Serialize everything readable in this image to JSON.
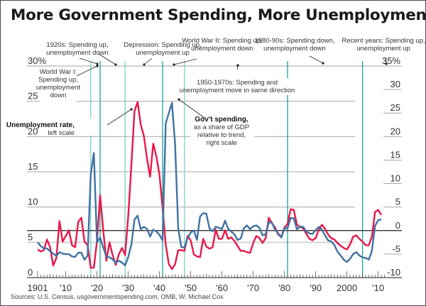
{
  "title": "More Government Spending, More Unemployment",
  "source": "Sources: U.S. Census, usgovernmentspending.com, OMB, W. Michael Cox",
  "chart_data": {
    "type": "line",
    "title": "More Government Spending, More Unemployment",
    "xlabel": "",
    "ylabel_left": "Unemployment rate (%)",
    "ylabel_right": "Gov't spending, share of GDP relative to trend (%)",
    "xlim": [
      1898,
      2015
    ],
    "ylim_left": [
      0,
      30
    ],
    "ylim_right": [
      -10,
      35
    ],
    "x_ticks": [
      {
        "year": 1901,
        "label": "1901"
      },
      {
        "year": 1910,
        "label": "'10"
      },
      {
        "year": 1920,
        "label": "'20"
      },
      {
        "year": 1930,
        "label": "'30"
      },
      {
        "year": 1940,
        "label": "'40"
      },
      {
        "year": 1950,
        "label": "'50"
      },
      {
        "year": 1960,
        "label": "'60"
      },
      {
        "year": 1970,
        "label": "'70"
      },
      {
        "year": 1980,
        "label": "'80"
      },
      {
        "year": 1990,
        "label": "'90"
      },
      {
        "year": 2000,
        "label": "2000"
      },
      {
        "year": 2010,
        "label": "'10"
      }
    ],
    "left_ticks": [
      {
        "value": 30,
        "label": "30%"
      },
      {
        "value": 25,
        "label": "25"
      },
      {
        "value": 20,
        "label": "20"
      },
      {
        "value": 15,
        "label": "15"
      },
      {
        "value": 10,
        "label": "10"
      },
      {
        "value": 5,
        "label": "5"
      },
      {
        "value": 0,
        "label": "0"
      }
    ],
    "right_ticks": [
      {
        "value": 35,
        "label": "35%"
      },
      {
        "value": 30,
        "label": "30"
      },
      {
        "value": 25,
        "label": "25"
      },
      {
        "value": 20,
        "label": "20"
      },
      {
        "value": 15,
        "label": "15"
      },
      {
        "value": 10,
        "label": "10"
      },
      {
        "value": 5,
        "label": "5"
      },
      {
        "value": 0,
        "label": "0"
      },
      {
        "value": -5,
        "label": "-5"
      },
      {
        "value": -10,
        "label": "-10"
      }
    ],
    "period_markers": [
      1918,
      1921,
      1929,
      1941,
      1948,
      1981,
      2005
    ],
    "series": [
      {
        "name": "Unemployment rate, left scale",
        "axis": "left",
        "color": "#e8184a",
        "x": [
          1901,
          1902,
          1903,
          1904,
          1905,
          1906,
          1907,
          1908,
          1909,
          1910,
          1911,
          1912,
          1913,
          1914,
          1915,
          1916,
          1917,
          1918,
          1919,
          1920,
          1921,
          1922,
          1923,
          1924,
          1925,
          1926,
          1927,
          1928,
          1929,
          1930,
          1931,
          1932,
          1933,
          1934,
          1935,
          1936,
          1937,
          1938,
          1939,
          1940,
          1941,
          1942,
          1943,
          1944,
          1945,
          1946,
          1947,
          1948,
          1949,
          1950,
          1951,
          1952,
          1953,
          1954,
          1955,
          1956,
          1957,
          1958,
          1959,
          1960,
          1961,
          1962,
          1963,
          1964,
          1965,
          1966,
          1967,
          1968,
          1969,
          1970,
          1971,
          1972,
          1973,
          1974,
          1975,
          1976,
          1977,
          1978,
          1979,
          1980,
          1981,
          1982,
          1983,
          1984,
          1985,
          1986,
          1987,
          1988,
          1989,
          1990,
          1991,
          1992,
          1993,
          1994,
          1995,
          1996,
          1997,
          1998,
          1999,
          2000,
          2001,
          2002,
          2003,
          2004,
          2005,
          2006,
          2007,
          2008,
          2009,
          2010,
          2011
        ],
        "values": [
          4.0,
          3.7,
          3.9,
          5.4,
          4.3,
          1.7,
          2.8,
          8.0,
          5.1,
          5.9,
          6.7,
          4.6,
          4.3,
          7.9,
          8.5,
          5.1,
          4.6,
          1.4,
          1.4,
          5.2,
          11.7,
          6.7,
          2.4,
          5.0,
          3.2,
          1.8,
          3.3,
          4.2,
          3.2,
          8.7,
          15.9,
          23.6,
          24.9,
          21.7,
          20.1,
          16.9,
          14.3,
          19.0,
          17.2,
          14.6,
          9.9,
          4.7,
          1.9,
          1.2,
          1.9,
          3.9,
          3.9,
          3.8,
          5.9,
          5.3,
          3.3,
          3.0,
          2.9,
          5.5,
          4.4,
          4.1,
          4.3,
          6.8,
          5.5,
          5.5,
          6.7,
          5.5,
          5.7,
          5.2,
          4.5,
          3.8,
          3.8,
          3.6,
          3.5,
          4.9,
          5.9,
          5.6,
          4.9,
          5.6,
          8.5,
          7.7,
          7.1,
          6.1,
          5.8,
          7.1,
          7.6,
          9.7,
          9.6,
          7.5,
          7.2,
          7.0,
          6.2,
          5.5,
          5.3,
          5.6,
          6.8,
          7.5,
          6.9,
          6.1,
          5.6,
          5.4,
          4.9,
          4.5,
          4.2,
          4.0,
          4.7,
          5.8,
          6.0,
          5.5,
          5.1,
          4.6,
          4.6,
          5.8,
          9.3,
          9.6,
          8.9
        ]
      },
      {
        "name": "Gov't spending, as a share of GDP relative to trend, right scale",
        "axis": "right",
        "color": "#3f72a3",
        "x": [
          1901,
          1902,
          1903,
          1904,
          1905,
          1906,
          1907,
          1908,
          1909,
          1910,
          1911,
          1912,
          1913,
          1914,
          1915,
          1916,
          1917,
          1918,
          1919,
          1920,
          1921,
          1922,
          1923,
          1924,
          1925,
          1926,
          1927,
          1928,
          1929,
          1930,
          1931,
          1932,
          1933,
          1934,
          1935,
          1936,
          1937,
          1938,
          1939,
          1940,
          1941,
          1942,
          1943,
          1944,
          1945,
          1946,
          1947,
          1948,
          1949,
          1950,
          1951,
          1952,
          1953,
          1954,
          1955,
          1956,
          1957,
          1958,
          1959,
          1960,
          1961,
          1962,
          1963,
          1964,
          1965,
          1966,
          1967,
          1968,
          1969,
          1970,
          1971,
          1972,
          1973,
          1974,
          1975,
          1976,
          1977,
          1978,
          1979,
          1980,
          1981,
          1982,
          1983,
          1984,
          1985,
          1986,
          1987,
          1988,
          1989,
          1990,
          1991,
          1992,
          1993,
          1994,
          1995,
          1996,
          1997,
          1998,
          1999,
          2000,
          2001,
          2002,
          2003,
          2004,
          2005,
          2006,
          2007,
          2008,
          2009,
          2010,
          2011
        ],
        "values": [
          -2.5,
          -3.3,
          -3.8,
          -3.8,
          -4.4,
          -4.9,
          -5.4,
          -4.6,
          -4.9,
          -5.0,
          -5.0,
          -5.5,
          -5.6,
          -4.7,
          -4.7,
          -6.2,
          -5.3,
          12.0,
          16.5,
          -2.5,
          -1.5,
          -3.6,
          -5.5,
          -5.7,
          -6.1,
          -6.9,
          -6.4,
          -6.8,
          -7.4,
          -5.6,
          -3.0,
          2.3,
          3.2,
          0.3,
          0.8,
          0.4,
          -1.3,
          0.2,
          -0.2,
          -0.9,
          -2.1,
          22.8,
          25.0,
          27.2,
          18.4,
          0.5,
          -3.5,
          -3.6,
          -1.6,
          -0.4,
          0.0,
          -2.0,
          3.0,
          3.7,
          3.6,
          0.5,
          -0.2,
          0.8,
          0.6,
          0.3,
          2.1,
          0.4,
          -0.2,
          -0.8,
          -2.0,
          -1.7,
          0.5,
          1.1,
          0.3,
          0.9,
          1.1,
          0.6,
          -1.0,
          -0.8,
          1.8,
          1.7,
          0.2,
          -0.6,
          -1.5,
          0.5,
          0.5,
          2.7,
          2.6,
          0.3,
          0.8,
          0.8,
          -0.2,
          -0.6,
          -0.7,
          0.1,
          0.8,
          0.2,
          -1.0,
          -2.1,
          -2.3,
          -3.1,
          -4.5,
          -5.3,
          -6.2,
          -6.7,
          -6.0,
          -5.0,
          -4.6,
          -5.3,
          -5.7,
          -5.8,
          -6.2,
          -4.3,
          1.0,
          2.2,
          2.4
        ]
      }
    ],
    "annotations": [
      {
        "text": [
          "1920s: Spending up,",
          "unemployment down"
        ]
      },
      {
        "text": [
          "Depression: Spending up,",
          "unemployment up"
        ]
      },
      {
        "text": [
          "World War II: Spending up,",
          "unemployment down"
        ]
      },
      {
        "text": [
          "1980-90s: Spending down,",
          "unemployment down"
        ]
      },
      {
        "text": [
          "Recent years: Spending up,",
          "unemployment up"
        ]
      },
      {
        "text": [
          "World War I:",
          "Spending up,",
          "unemployment",
          "down"
        ]
      },
      {
        "text": [
          "1950-1970s: Spending and",
          "unemployment move in same direction"
        ]
      },
      {
        "bold": "Unemployment rate,",
        "text": [
          "left scale"
        ]
      },
      {
        "bold": "Gov't spending,",
        "text": [
          "as a share of GDP",
          "relative to trend,",
          "right scale"
        ]
      }
    ]
  },
  "colors": {
    "unemployment": "#e8184a",
    "spending": "#3f72a3",
    "marker_dark": "#1aa39b",
    "marker_light": "#7fcfc9",
    "grid": "#a8a8a8",
    "zero_line": "#1a1a1a"
  }
}
